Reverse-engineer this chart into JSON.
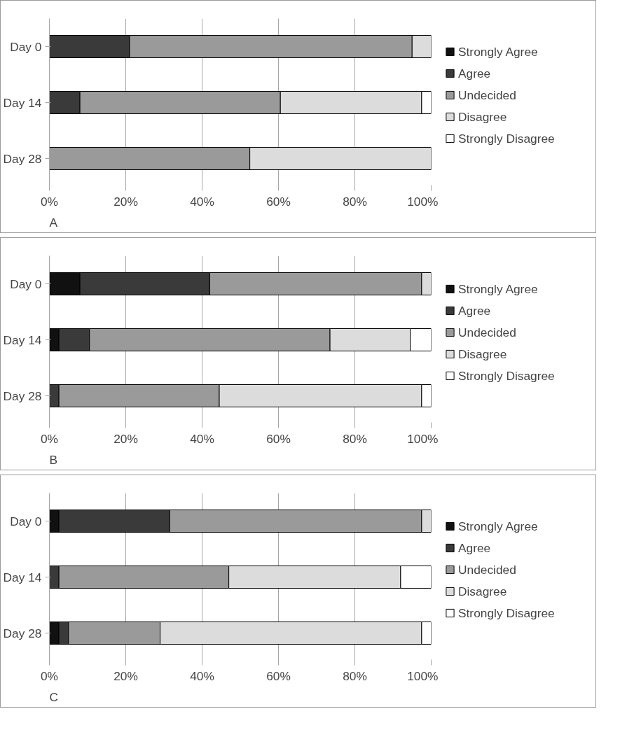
{
  "chart_data": [
    {
      "type": "bar",
      "orientation": "horizontal",
      "stacked": true,
      "categories": [
        "Day 0",
        "Day 14",
        "Day 28"
      ],
      "xlim": [
        0,
        100
      ],
      "xticks": [
        {
          "value": 0,
          "label": "0%"
        },
        {
          "value": 20,
          "label": "20%"
        },
        {
          "value": 40,
          "label": "40%"
        },
        {
          "value": 60,
          "label": "60%"
        },
        {
          "value": 80,
          "label": "80%"
        },
        {
          "value": 100,
          "label": "100%"
        }
      ],
      "grid": "x",
      "legend": "right",
      "annotations": [
        "A"
      ],
      "series": [
        {
          "name": "Strongly Agree",
          "color": "#111111",
          "values": [
            0,
            0,
            0
          ]
        },
        {
          "name": "Agree",
          "color": "#3a3a3a",
          "values": [
            21,
            8,
            0
          ]
        },
        {
          "name": "Undecided",
          "color": "#9a9a9a",
          "values": [
            74,
            52.5,
            52.5
          ]
        },
        {
          "name": "Disagree",
          "color": "#dcdcdc",
          "values": [
            5,
            37,
            47.5
          ]
        },
        {
          "name": "Strongly Disagree",
          "color": "#ffffff",
          "values": [
            0,
            2.5,
            0
          ]
        }
      ]
    },
    {
      "type": "bar",
      "orientation": "horizontal",
      "stacked": true,
      "categories": [
        "Day 0",
        "Day 14",
        "Day 28"
      ],
      "xlim": [
        0,
        100
      ],
      "xticks": [
        {
          "value": 0,
          "label": "0%"
        },
        {
          "value": 20,
          "label": "20%"
        },
        {
          "value": 40,
          "label": "40%"
        },
        {
          "value": 60,
          "label": "60%"
        },
        {
          "value": 80,
          "label": "80%"
        },
        {
          "value": 100,
          "label": "100%"
        }
      ],
      "grid": "x",
      "legend": "right",
      "annotations": [
        "B"
      ],
      "series": [
        {
          "name": "Strongly Agree",
          "color": "#111111",
          "values": [
            8,
            2.5,
            0
          ]
        },
        {
          "name": "Agree",
          "color": "#3a3a3a",
          "values": [
            34,
            8,
            2.5
          ]
        },
        {
          "name": "Undecided",
          "color": "#9a9a9a",
          "values": [
            55.5,
            63,
            42
          ]
        },
        {
          "name": "Disagree",
          "color": "#dcdcdc",
          "values": [
            2.5,
            21,
            53
          ]
        },
        {
          "name": "Strongly Disagree",
          "color": "#ffffff",
          "values": [
            0,
            5.5,
            2.5
          ]
        }
      ]
    },
    {
      "type": "bar",
      "orientation": "horizontal",
      "stacked": true,
      "categories": [
        "Day 0",
        "Day 14",
        "Day 28"
      ],
      "xlim": [
        0,
        100
      ],
      "xticks": [
        {
          "value": 0,
          "label": "0%"
        },
        {
          "value": 20,
          "label": "20%"
        },
        {
          "value": 40,
          "label": "40%"
        },
        {
          "value": 60,
          "label": "60%"
        },
        {
          "value": 80,
          "label": "80%"
        },
        {
          "value": 100,
          "label": "100%"
        }
      ],
      "grid": "x",
      "legend": "right",
      "annotations": [
        "C"
      ],
      "series": [
        {
          "name": "Strongly Agree",
          "color": "#111111",
          "values": [
            2.5,
            0,
            2.5
          ]
        },
        {
          "name": "Agree",
          "color": "#3a3a3a",
          "values": [
            29,
            2.5,
            2.5
          ]
        },
        {
          "name": "Undecided",
          "color": "#9a9a9a",
          "values": [
            66,
            44.5,
            24
          ]
        },
        {
          "name": "Disagree",
          "color": "#dcdcdc",
          "values": [
            2.5,
            45,
            68.5
          ]
        },
        {
          "name": "Strongly Disagree",
          "color": "#ffffff",
          "values": [
            0,
            8,
            2.5
          ]
        }
      ]
    }
  ]
}
